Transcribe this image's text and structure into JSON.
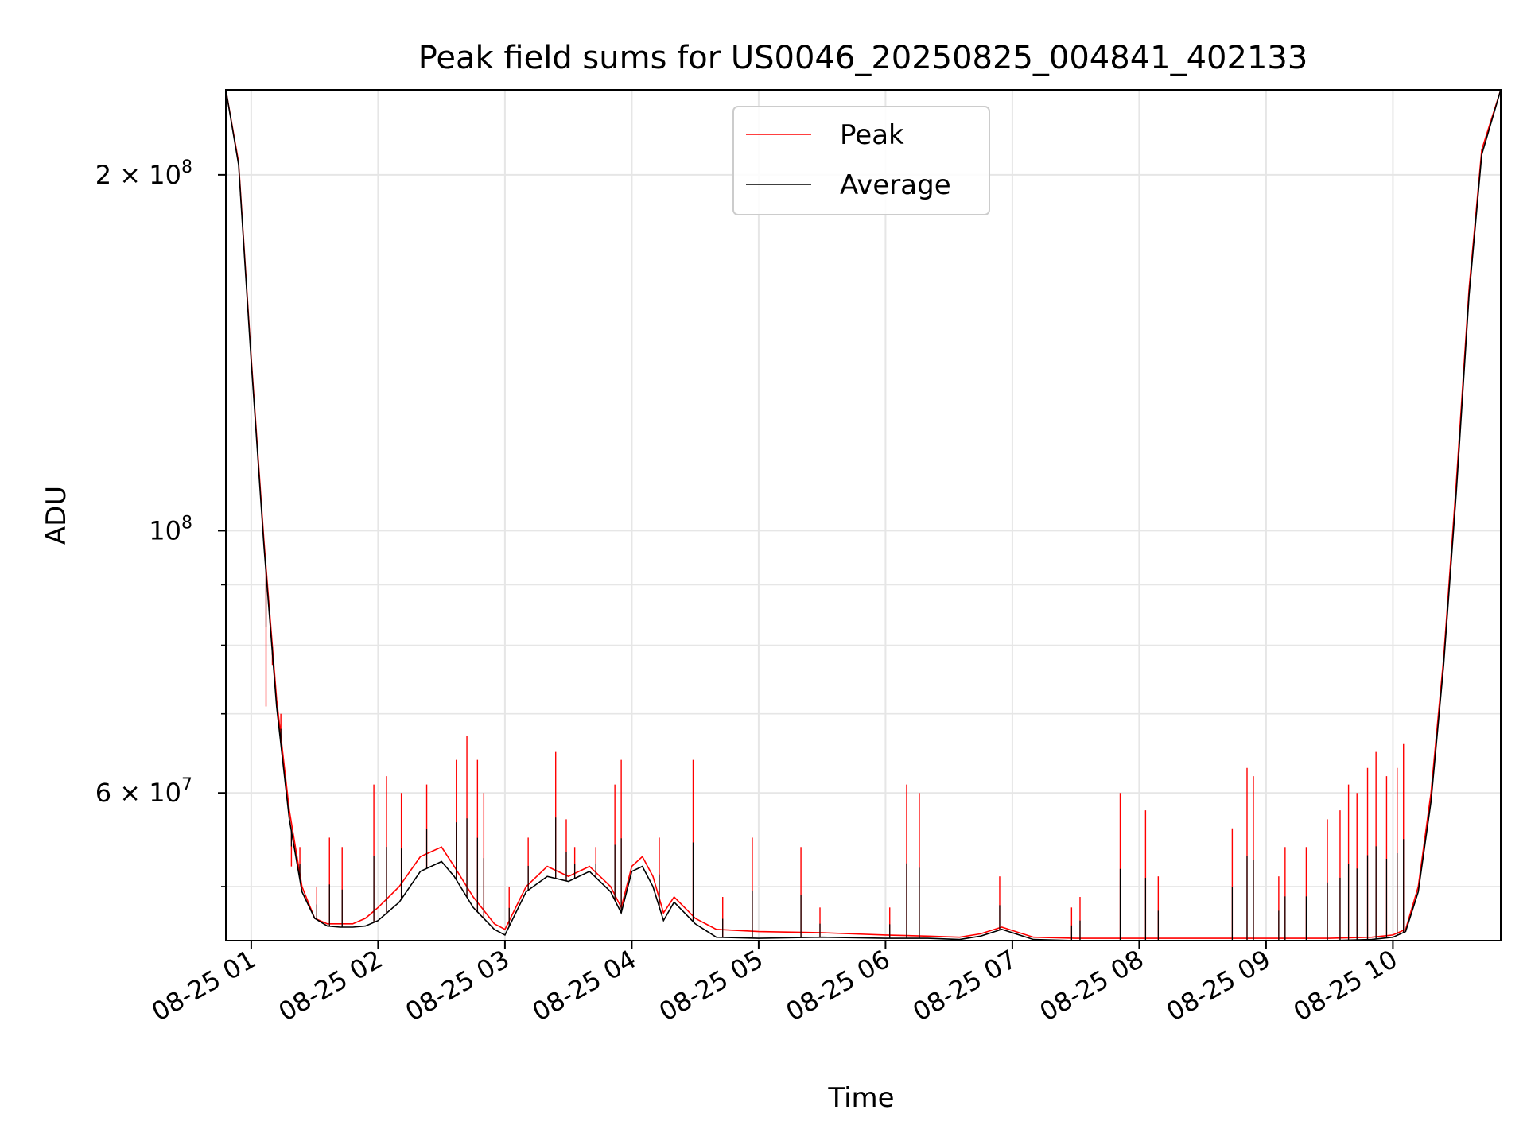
{
  "chart_data": {
    "type": "line",
    "title": "Peak field sums for US0046_20250825_004841_402133",
    "xlabel": "Time",
    "ylabel": "ADU",
    "yscale": "log",
    "ylim": [
      45000000,
      236000000
    ],
    "xlim": [
      "08-25 00:48",
      "08-25 10:51"
    ],
    "grid": true,
    "legend_position": "top-center",
    "x_ticks": [
      "08-25 01",
      "08-25 02",
      "08-25 03",
      "08-25 04",
      "08-25 05",
      "08-25 06",
      "08-25 07",
      "08-25 08",
      "08-25 09",
      "08-25 10"
    ],
    "y_ticks": [
      {
        "value": 200000000,
        "label_base": "2 × 10",
        "label_exp": "8"
      },
      {
        "value": 100000000,
        "label_base": "10",
        "label_exp": "8"
      },
      {
        "value": 60000000,
        "label_base": "6 × 10",
        "label_exp": "7"
      }
    ],
    "y_minor_ticks": [
      50000000,
      70000000,
      80000000,
      90000000
    ],
    "x": [
      "08-25 00:48",
      "08-25 00:54",
      "08-25 01:00",
      "08-25 01:06",
      "08-25 01:12",
      "08-25 01:18",
      "08-25 01:24",
      "08-25 01:30",
      "08-25 01:36",
      "08-25 01:42",
      "08-25 01:48",
      "08-25 01:54",
      "08-25 02:00",
      "08-25 02:10",
      "08-25 02:20",
      "08-25 02:30",
      "08-25 02:36",
      "08-25 02:45",
      "08-25 02:55",
      "08-25 03:00",
      "08-25 03:10",
      "08-25 03:20",
      "08-25 03:30",
      "08-25 03:40",
      "08-25 03:50",
      "08-25 03:55",
      "08-25 04:00",
      "08-25 04:05",
      "08-25 04:10",
      "08-25 04:15",
      "08-25 04:20",
      "08-25 04:30",
      "08-25 04:40",
      "08-25 05:00",
      "08-25 05:30",
      "08-25 06:00",
      "08-25 06:20",
      "08-25 06:35",
      "08-25 06:45",
      "08-25 06:55",
      "08-25 07:10",
      "08-25 07:30",
      "08-25 08:00",
      "08-25 08:30",
      "08-25 09:00",
      "08-25 09:30",
      "08-25 09:50",
      "08-25 10:00",
      "08-25 10:06",
      "08-25 10:12",
      "08-25 10:18",
      "08-25 10:24",
      "08-25 10:30",
      "08-25 10:36",
      "08-25 10:42",
      "08-25 10:51"
    ],
    "series": [
      {
        "name": "Peak",
        "color": "#ff0000",
        "values": [
          236000000,
          205000000,
          140000000,
          98000000,
          72000000,
          58000000,
          50000000,
          47000000,
          46500000,
          46500000,
          46500000,
          47000000,
          48000000,
          50000000,
          53000000,
          54000000,
          52000000,
          49000000,
          46500000,
          46000000,
          50000000,
          52000000,
          51000000,
          52000000,
          50000000,
          48000000,
          52000000,
          53000000,
          51000000,
          47500000,
          49000000,
          47000000,
          46000000,
          45800000,
          45700000,
          45500000,
          45400000,
          45300000,
          45600000,
          46200000,
          45300000,
          45200000,
          45200000,
          45200000,
          45200000,
          45200000,
          45300000,
          45500000,
          46000000,
          50000000,
          60000000,
          78000000,
          110000000,
          160000000,
          210000000,
          236000000
        ]
      },
      {
        "name": "Average",
        "color": "#000000",
        "values": [
          236000000,
          204000000,
          139000000,
          97000000,
          71000000,
          57000000,
          49500000,
          47000000,
          46300000,
          46200000,
          46200000,
          46300000,
          46800000,
          48500000,
          51500000,
          52500000,
          51000000,
          48000000,
          46000000,
          45500000,
          49500000,
          51000000,
          50500000,
          51500000,
          49500000,
          47500000,
          51500000,
          52000000,
          50000000,
          46800000,
          48500000,
          46500000,
          45300000,
          45200000,
          45300000,
          45200000,
          45200000,
          45100000,
          45400000,
          46000000,
          45100000,
          45000000,
          45000000,
          45000000,
          45000000,
          45000000,
          45100000,
          45300000,
          45800000,
          49500000,
          59000000,
          77000000,
          108000000,
          158000000,
          208000000,
          236000000
        ]
      }
    ],
    "peak_spikes": [
      [
        "08-25 01:07",
        71000000
      ],
      [
        "08-25 01:10",
        77000000
      ],
      [
        "08-25 01:14",
        70000000
      ],
      [
        "08-25 01:19",
        52000000
      ],
      [
        "08-25 01:23",
        54000000
      ],
      [
        "08-25 01:31",
        50000000
      ],
      [
        "08-25 01:37",
        55000000
      ],
      [
        "08-25 01:43",
        54000000
      ],
      [
        "08-25 01:58",
        61000000
      ],
      [
        "08-25 02:04",
        62000000
      ],
      [
        "08-25 02:11",
        60000000
      ],
      [
        "08-25 02:23",
        61000000
      ],
      [
        "08-25 02:37",
        64000000
      ],
      [
        "08-25 02:42",
        67000000
      ],
      [
        "08-25 02:47",
        64000000
      ],
      [
        "08-25 02:50",
        60000000
      ],
      [
        "08-25 03:02",
        50000000
      ],
      [
        "08-25 03:11",
        55000000
      ],
      [
        "08-25 03:24",
        65000000
      ],
      [
        "08-25 03:29",
        57000000
      ],
      [
        "08-25 03:33",
        54000000
      ],
      [
        "08-25 03:43",
        54000000
      ],
      [
        "08-25 03:52",
        61000000
      ],
      [
        "08-25 03:55",
        64000000
      ],
      [
        "08-25 04:13",
        55000000
      ],
      [
        "08-25 04:29",
        64000000
      ],
      [
        "08-25 04:43",
        49000000
      ],
      [
        "08-25 04:57",
        55000000
      ],
      [
        "08-25 05:20",
        54000000
      ],
      [
        "08-25 05:29",
        48000000
      ],
      [
        "08-25 06:02",
        48000000
      ],
      [
        "08-25 06:10",
        61000000
      ],
      [
        "08-25 06:16",
        60000000
      ],
      [
        "08-25 06:54",
        51000000
      ],
      [
        "08-25 07:28",
        48000000
      ],
      [
        "08-25 07:32",
        49000000
      ],
      [
        "08-25 07:51",
        60000000
      ],
      [
        "08-25 08:03",
        58000000
      ],
      [
        "08-25 08:09",
        51000000
      ],
      [
        "08-25 08:44",
        56000000
      ],
      [
        "08-25 08:51",
        63000000
      ],
      [
        "08-25 08:54",
        62000000
      ],
      [
        "08-25 09:06",
        51000000
      ],
      [
        "08-25 09:09",
        54000000
      ],
      [
        "08-25 09:19",
        54000000
      ],
      [
        "08-25 09:29",
        57000000
      ],
      [
        "08-25 09:35",
        58000000
      ],
      [
        "08-25 09:39",
        61000000
      ],
      [
        "08-25 09:43",
        60000000
      ],
      [
        "08-25 09:48",
        63000000
      ],
      [
        "08-25 09:52",
        65000000
      ],
      [
        "08-25 09:57",
        62000000
      ],
      [
        "08-25 10:02",
        63000000
      ],
      [
        "08-25 10:05",
        66000000
      ]
    ]
  }
}
